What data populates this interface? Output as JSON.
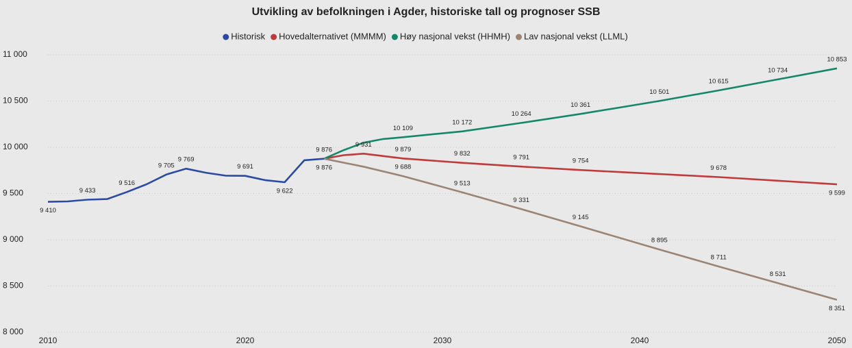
{
  "chart_data": {
    "type": "line",
    "title": "Utvikling av befolkningen i Agder, historiske tall og prognoser SSB",
    "xlim": [
      2010,
      2050
    ],
    "xticks": [
      2010,
      2020,
      2030,
      2040,
      2050
    ],
    "ylim": [
      8000,
      11000
    ],
    "yticks": [
      {
        "value": 8000,
        "label": "8 000"
      },
      {
        "value": 8500,
        "label": "8 500"
      },
      {
        "value": 9000,
        "label": "9 000"
      },
      {
        "value": 9500,
        "label": "9 500"
      },
      {
        "value": 10000,
        "label": "10 000"
      },
      {
        "value": 10500,
        "label": "10 500"
      },
      {
        "value": 11000,
        "label": "11 000"
      }
    ],
    "grid": true,
    "series": [
      {
        "name": "Historisk",
        "color": "#2a4aa6",
        "x": [
          2010,
          2011,
          2012,
          2013,
          2014,
          2015,
          2016,
          2017,
          2018,
          2019,
          2020,
          2021,
          2022,
          2023,
          2024
        ],
        "values": [
          9410,
          9415,
          9433,
          9440,
          9516,
          9600,
          9705,
          9769,
          9725,
          9693,
          9691,
          9645,
          9622,
          9860,
          9876
        ],
        "value_labels": [
          "9 410",
          null,
          "9 433",
          null,
          "9 516",
          null,
          "9 705",
          "9 769",
          null,
          null,
          "9 691",
          null,
          "9 622",
          null,
          null
        ]
      },
      {
        "name": "Hovedalternativet (MMMM)",
        "color": "#c0393b",
        "x": [
          2024,
          2025,
          2026,
          2028,
          2031,
          2034,
          2037,
          2044,
          2050
        ],
        "values": [
          9876,
          9915,
          9931,
          9879,
          9832,
          9791,
          9754,
          9678,
          9599
        ],
        "value_labels": [
          "9 876",
          null,
          "9 931",
          "9 879",
          "9 832",
          "9 791",
          "9 754",
          "9 678",
          "9 599"
        ]
      },
      {
        "name": "Høy nasjonal vekst (HHMH)",
        "color": "#14876a",
        "x": [
          2024,
          2025,
          2026,
          2027,
          2028,
          2031,
          2034,
          2037,
          2041,
          2044,
          2047,
          2050
        ],
        "values": [
          9876,
          9970,
          10050,
          10090,
          10109,
          10172,
          10264,
          10361,
          10501,
          10615,
          10734,
          10853
        ],
        "value_labels": [
          "9 876",
          null,
          null,
          null,
          "10 109",
          "10 172",
          "10 264",
          "10 361",
          "10 501",
          "10 615",
          "10 734",
          "10 853"
        ]
      },
      {
        "name": "Lav nasjonal vekst (LLML)",
        "color": "#9c8474",
        "x": [
          2024,
          2026,
          2028,
          2031,
          2034,
          2037,
          2041,
          2044,
          2047,
          2050
        ],
        "values": [
          9876,
          9790,
          9688,
          9513,
          9331,
          9145,
          8895,
          8711,
          8531,
          8351
        ],
        "value_labels": [
          null,
          null,
          "9 688",
          "9 513",
          "9 331",
          "9 145",
          "8 895",
          "8 711",
          "8 531",
          "8 351"
        ]
      }
    ]
  }
}
